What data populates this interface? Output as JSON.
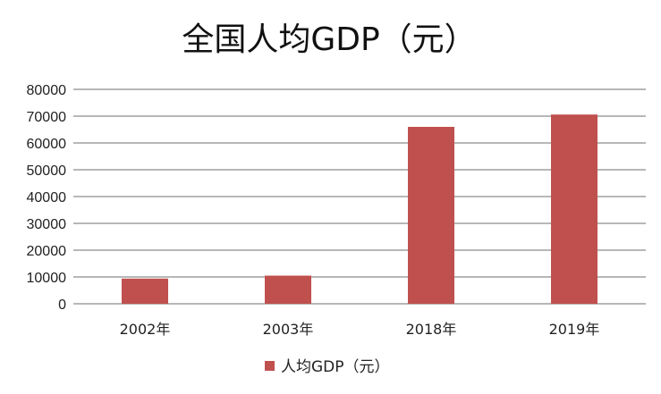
{
  "chart_data": {
    "type": "bar",
    "title": "全国人均GDP（元）",
    "categories": [
      "2002年",
      "2003年",
      "2018年",
      "2019年"
    ],
    "series": [
      {
        "name": "人均GDP（元）",
        "values": [
          9400,
          10500,
          66000,
          70600
        ]
      }
    ],
    "ylim": [
      0,
      80000
    ],
    "yticks": [
      "0",
      "10000",
      "20000",
      "30000",
      "40000",
      "50000",
      "60000",
      "70000",
      "80000"
    ],
    "xlabel": "",
    "ylabel": "",
    "grid": true,
    "legend": "bottom",
    "bar_color": "#c0504d",
    "grid_color": "#8c8c8c"
  }
}
